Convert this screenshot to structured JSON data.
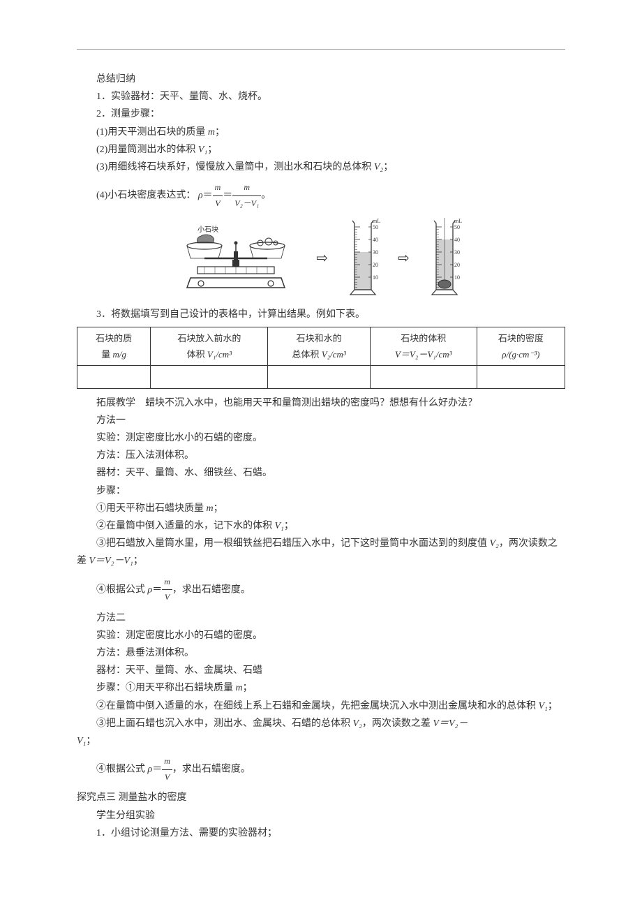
{
  "doc": {
    "summary_title": "总结归纳",
    "line1": "1．实验器材：天平、量筒、水、烧杯。",
    "line2": "2．测量步骤：",
    "step1": "(1)用天平测出石块的质量",
    "step1_var": "m",
    "step1_end": "；",
    "step2": "(2)用量筒测出水的体积",
    "step2_var": "V₁",
    "step2_end": "；",
    "step3": "(3)用细线将石块系好，慢慢放入量筒中，测出水和石块的总体积",
    "step3_var": "V₂",
    "step3_end": "；",
    "step4_pre": "(4)小石块密度表达式：",
    "diagram_label": "小石块",
    "line3_pre": "3．将数据填写到自己设计的表格中，计算出结果。例如下表。",
    "tbl": {
      "h1a": "石块的质",
      "h1b": "量",
      "h1c": "m/g",
      "h2a": "石块放入前水的",
      "h2b": "体积",
      "h2c": "V₁/cm³",
      "h3a": "石块和水的",
      "h3b": "总体积",
      "h3c": "V₂/cm³",
      "h4a": "石块的体积",
      "h4b": "V＝V₂－V₁/cm³",
      "h5a": "石块的密度",
      "h5b": "ρ/(g·cm⁻³)"
    },
    "expand_label": "拓展教学　蜡块不沉入水中，也能用天平和量筒测出蜡块的密度吗？想想有什么好办法？",
    "method1": "方法一",
    "m1_exp": "实验：测定密度比水小的石蜡的密度。",
    "m1_method": "方法：压入法测体积。",
    "m1_tools": "器材：天平、量筒、水、细铁丝、石蜡。",
    "m1_steps": "步骤：",
    "m1_s1": "①用天平称出石蜡块质量",
    "m1_s1_var": "m",
    "m1_s1_end": "；",
    "m1_s2": "②在量筒中倒入适量的水，记下水的体积",
    "m1_s2_var": "V₁",
    "m1_s2_end": "；",
    "m1_s3": "③把石蜡放入量筒水里，用一根细铁丝把石蜡压入水中，记下这时量筒中水面达到的刻度值",
    "m1_s3_var": "V₂",
    "m1_s3_mid": "，两次读数之差",
    "m1_s3_eq": "V＝V₂－V₁",
    "m1_s3_end": "；",
    "m1_s4_pre": "④根据公式",
    "m1_s4_post": "，求出石蜡密度。",
    "method2": "方法二",
    "m2_exp": "实验：测定密度比水小的石蜡的密度。",
    "m2_method": "方法：悬垂法测体积。",
    "m2_tools": "器材：天平、量筒、水、金属块、石蜡",
    "m2_s1": "步骤：①用天平称出石蜡块质量",
    "m2_s1_var": "m",
    "m2_s1_end": "；",
    "m2_s2": "②在量筒中倒入适量的水，在细线上系上石蜡和金属块，先把金属块沉入水中测出金属块和水的总体积",
    "m2_s2_var": "V₁",
    "m2_s2_end": "；",
    "m2_s3_pre": "③把上面石蜡也沉入水中，测出水、金属块、石蜡的总体积",
    "m2_s3_var": "V₂",
    "m2_s3_mid": "，两次读数之差",
    "m2_s3_eq": "V＝V₂－",
    "m2_s3_var2": "V₁",
    "m2_s3_end": "；",
    "m2_s4_pre": "④根据公式",
    "m2_s4_post": "，求出石蜡密度。",
    "topic3": "探究点三 测量盐水的密度",
    "t3_l1": "学生分组实验",
    "t3_l2": "1．小组讨论测量方法、需要的实验器材；",
    "cyl": {
      "label_ml": "mL",
      "ticks": [
        "50",
        "40",
        "30",
        "20",
        "10"
      ],
      "water1": 30,
      "water2": 40,
      "water_color": "#d0d0d0",
      "outline": "#3a3a3a",
      "tick_color": "#3a3a3a",
      "text_color": "#3a3a3a"
    }
  }
}
